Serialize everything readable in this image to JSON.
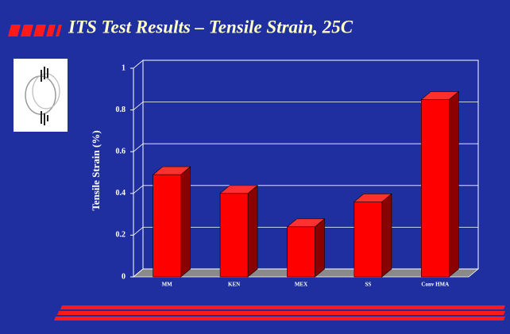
{
  "chart_data": {
    "type": "bar3d",
    "title": "ITS Test Results – Tensile Strain, 25C",
    "y_label": "Tensile Strain (%)",
    "categories": [
      "MM",
      "KEN",
      "MEX",
      "SS",
      "Conv HMA"
    ],
    "values": [
      0.49,
      0.4,
      0.24,
      0.36,
      0.85
    ],
    "color": "#ff0000",
    "ylim": [
      0,
      1
    ],
    "yticks": [
      0,
      0.2,
      0.4,
      0.6,
      0.8,
      1
    ],
    "grid": true
  }
}
